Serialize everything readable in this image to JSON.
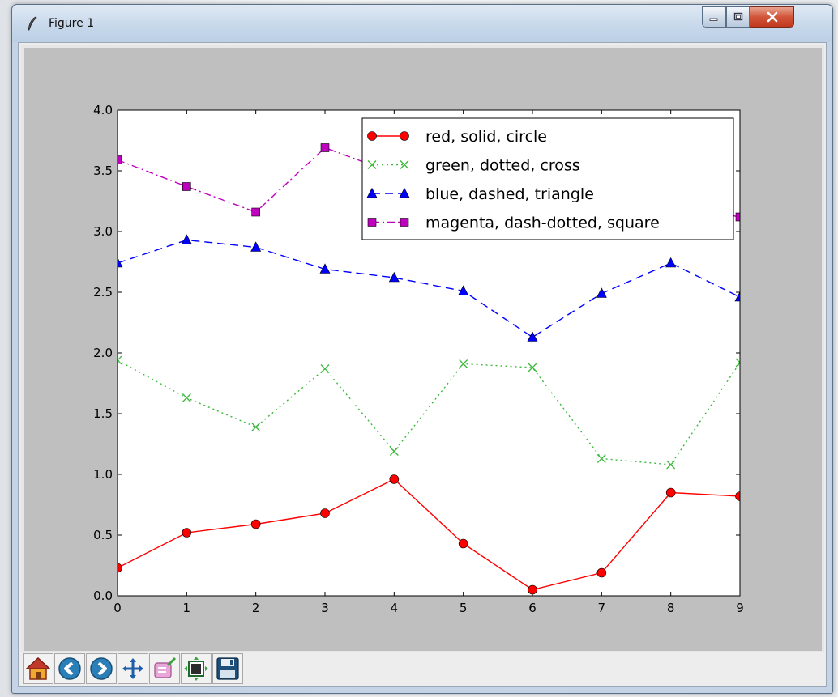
{
  "window": {
    "title": "Figure 1",
    "icons": {
      "app": "feather-icon",
      "minimize": "minimize-icon",
      "maximize": "maximize-icon",
      "close": "close-icon"
    },
    "colors": {
      "close_button": "#c0391f",
      "frame": "#c4d4e6"
    }
  },
  "toolbar": {
    "buttons": [
      {
        "name": "home",
        "icon": "home-icon"
      },
      {
        "name": "back",
        "icon": "back-arrow-icon"
      },
      {
        "name": "forward",
        "icon": "forward-arrow-icon"
      },
      {
        "name": "pan",
        "icon": "move-icon"
      },
      {
        "name": "zoom",
        "icon": "zoom-rect-icon"
      },
      {
        "name": "subplots",
        "icon": "subplots-icon"
      },
      {
        "name": "save",
        "icon": "floppy-disk-icon"
      }
    ]
  },
  "chart_data": {
    "type": "line",
    "x": [
      0,
      1,
      2,
      3,
      4,
      5,
      6,
      7,
      8,
      9
    ],
    "xlim": [
      0,
      9
    ],
    "ylim": [
      0,
      4
    ],
    "xticks": [
      "0",
      "1",
      "2",
      "3",
      "4",
      "5",
      "6",
      "7",
      "8",
      "9"
    ],
    "yticks": [
      "0.0",
      "0.5",
      "1.0",
      "1.5",
      "2.0",
      "2.5",
      "3.0",
      "3.5",
      "4.0"
    ],
    "grid": false,
    "legend_position": "top-right",
    "series": [
      {
        "name": "red, solid, circle",
        "color": "#ff0000",
        "linestyle": "solid",
        "marker": "circle",
        "values": [
          0.23,
          0.52,
          0.59,
          0.68,
          0.96,
          0.43,
          0.05,
          0.19,
          0.85,
          0.82
        ]
      },
      {
        "name": "green, dotted, cross",
        "color": "#3cb83c",
        "linestyle": "dotted",
        "marker": "cross",
        "values": [
          1.94,
          1.63,
          1.39,
          1.87,
          1.19,
          1.91,
          1.88,
          1.13,
          1.08,
          1.92
        ]
      },
      {
        "name": "blue, dashed, triangle",
        "color": "#0000ff",
        "linestyle": "dashed",
        "marker": "triangle",
        "values": [
          2.74,
          2.93,
          2.87,
          2.69,
          2.62,
          2.51,
          2.13,
          2.49,
          2.74,
          2.46
        ]
      },
      {
        "name": "magenta, dash-dotted, square",
        "color": "#bf00bf",
        "linestyle": "dash-dotted",
        "marker": "square",
        "values": [
          3.59,
          3.37,
          3.16,
          3.69,
          3.48,
          3.33,
          3.35,
          3.41,
          3.22,
          3.12
        ]
      }
    ]
  }
}
